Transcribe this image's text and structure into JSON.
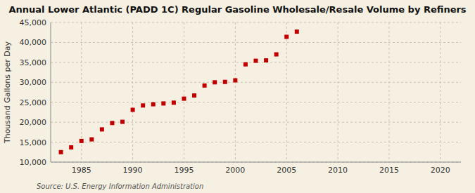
{
  "chart_data": {
    "type": "scatter",
    "title": "Annual Lower Atlantic (PADD 1C) Regular Gasoline Wholesale/Resale Volume by Refiners",
    "ylabel": "Thousand Gallons per Day",
    "source": "Source: U.S. Energy Information Administration",
    "x": [
      1983,
      1984,
      1985,
      1986,
      1987,
      1988,
      1989,
      1990,
      1991,
      1992,
      1993,
      1994,
      1995,
      1996,
      1997,
      1998,
      1999,
      2000,
      2001,
      2002,
      2003,
      2004,
      2005,
      2006
    ],
    "values": [
      12500,
      13700,
      15300,
      15700,
      18200,
      19800,
      20100,
      23100,
      24200,
      24500,
      24700,
      24900,
      25900,
      26700,
      29200,
      30000,
      30100,
      30500,
      34500,
      35400,
      35500,
      37000,
      41400,
      42700
    ],
    "color": "#C00000",
    "marker": "square",
    "xlim": [
      1982,
      2022
    ],
    "ylim": [
      10000,
      45000
    ],
    "xticks": [
      1985,
      1990,
      1995,
      2000,
      2005,
      2010,
      2015,
      2020
    ],
    "yticks": [
      {
        "value": 10000,
        "label": "10,000"
      },
      {
        "value": 15000,
        "label": "15,000"
      },
      {
        "value": 20000,
        "label": "20,000"
      },
      {
        "value": 25000,
        "label": "25,000"
      },
      {
        "value": 30000,
        "label": "30,000"
      },
      {
        "value": 35000,
        "label": "35,000"
      },
      {
        "value": 40000,
        "label": "40,000"
      },
      {
        "value": 45000,
        "label": "45,000"
      }
    ],
    "grid": true
  }
}
